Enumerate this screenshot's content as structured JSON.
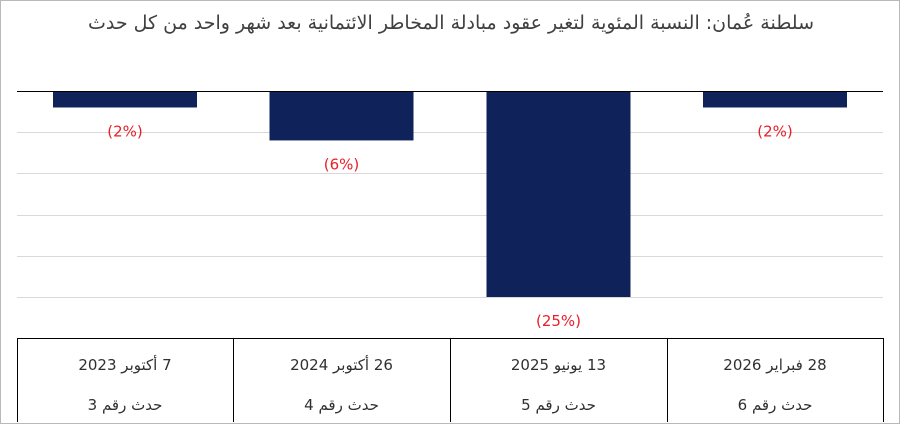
{
  "chart_data": {
    "type": "bar",
    "title": "سلطنة عُمان: النسبة المئوية لتغير عقود مبادلة المخاطر الائتمانية بعد شهر واحد من كل حدث",
    "categories": [
      {
        "date": "7 أكتوبر 2023",
        "event": "حدث رقم 3"
      },
      {
        "date": "26 أكتوبر 2024",
        "event": "حدث رقم 4"
      },
      {
        "date": "13 يونيو 2025",
        "event": "حدث رقم 5"
      },
      {
        "date": "28 فبراير 2026",
        "event": "حدث رقم 6"
      }
    ],
    "values": [
      -2,
      -6,
      -25,
      -2
    ],
    "data_labels": [
      "(2%)",
      "(6%)",
      "(25%)",
      "(2%)"
    ],
    "ylim": [
      -25,
      0
    ],
    "grid": true,
    "legend": "none",
    "colors": {
      "bar": "#0f2259",
      "label": "#e8202a",
      "grid": "#d9d9d9",
      "axis": "#000000"
    }
  }
}
